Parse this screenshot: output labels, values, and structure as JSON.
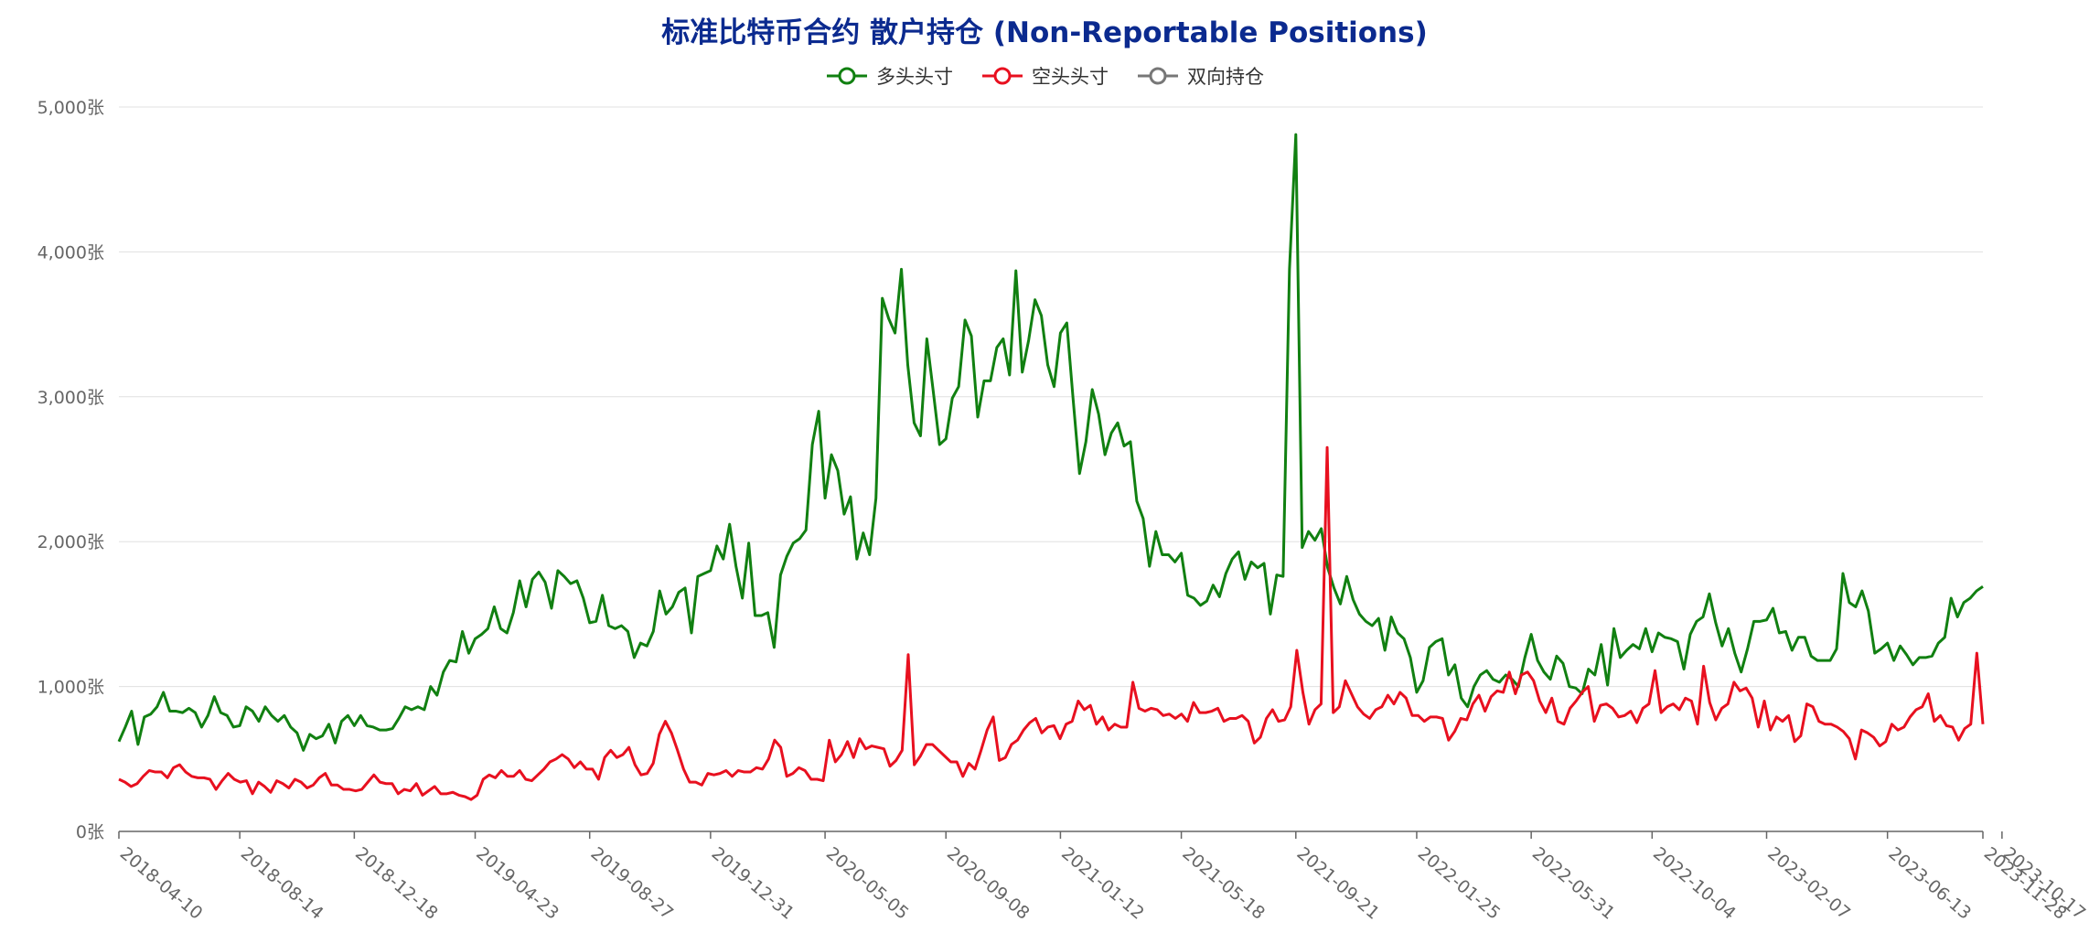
{
  "chart_data": {
    "type": "line",
    "title": "标准比特币合约 散户持仓 (Non-Reportable Positions)",
    "ylim": [
      0,
      5000
    ],
    "y_ticks": [
      "0张",
      "1,000张",
      "2,000张",
      "3,000张",
      "4,000张",
      "5,000张"
    ],
    "y_tick_values": [
      0,
      1000,
      2000,
      3000,
      4000,
      5000
    ],
    "x_tick_labels": [
      "2018-04-10",
      "2018-08-14",
      "2018-12-18",
      "2019-04-23",
      "2019-08-27",
      "2019-12-31",
      "2020-05-05",
      "2020-09-08",
      "2021-01-12",
      "2021-05-18",
      "2021-09-21",
      "2022-01-25",
      "2022-05-31",
      "2022-10-04",
      "2023-02-07",
      "2023-06-13",
      "2023-10-17",
      "2023-11-28"
    ],
    "grid": true,
    "legend_position": "top-center",
    "series": [
      {
        "name": "多头头寸",
        "color": "#118011",
        "values": [
          620,
          720,
          830,
          600,
          790,
          810,
          860,
          960,
          830,
          830,
          820,
          850,
          820,
          720,
          800,
          930,
          820,
          800,
          720,
          730,
          860,
          830,
          760,
          860,
          800,
          760,
          800,
          720,
          680,
          560,
          670,
          640,
          660,
          740,
          610,
          760,
          800,
          730,
          800,
          730,
          720,
          700,
          700,
          710,
          780,
          860,
          840,
          860,
          840,
          1000,
          940,
          1100,
          1180,
          1170,
          1380,
          1230,
          1330,
          1360,
          1400,
          1550,
          1400,
          1370,
          1510,
          1730,
          1550,
          1740,
          1790,
          1720,
          1540,
          1800,
          1760,
          1710,
          1730,
          1610,
          1440,
          1450,
          1630,
          1420,
          1400,
          1420,
          1380,
          1200,
          1300,
          1280,
          1380,
          1660,
          1500,
          1550,
          1650,
          1680,
          1370,
          1760,
          1780,
          1800,
          1970,
          1880,
          2120,
          1830,
          1610,
          1990,
          1490,
          1490,
          1510,
          1270,
          1770,
          1900,
          1990,
          2020,
          2080,
          2670,
          2900,
          2300,
          2600,
          2490,
          2190,
          2310,
          1880,
          2060,
          1910,
          2300,
          3680,
          3540,
          3440,
          3880,
          3220,
          2820,
          2730,
          3400,
          3040,
          2670,
          2710,
          2990,
          3070,
          3530,
          3420,
          2860,
          3110,
          3110,
          3340,
          3400,
          3150,
          3870,
          3170,
          3390,
          3670,
          3560,
          3220,
          3070,
          3440,
          3510,
          2980,
          2470,
          2690,
          3050,
          2880,
          2600,
          2750,
          2820,
          2660,
          2690,
          2280,
          2160,
          1830,
          2070,
          1910,
          1910,
          1860,
          1920,
          1630,
          1610,
          1560,
          1590,
          1700,
          1620,
          1780,
          1880,
          1930,
          1740,
          1860,
          1820,
          1850,
          1500,
          1770,
          1760,
          3880,
          4810,
          1960,
          2070,
          2010,
          2090,
          1820,
          1680,
          1570,
          1760,
          1600,
          1500,
          1450,
          1420,
          1470,
          1250,
          1480,
          1370,
          1330,
          1200,
          960,
          1040,
          1270,
          1310,
          1330,
          1080,
          1150,
          920,
          860,
          1000,
          1080,
          1110,
          1050,
          1030,
          1080,
          1050,
          1000,
          1200,
          1360,
          1180,
          1100,
          1050,
          1210,
          1160,
          1000,
          990,
          950,
          1120,
          1080,
          1290,
          1010,
          1400,
          1200,
          1250,
          1290,
          1260,
          1400,
          1240,
          1370,
          1340,
          1330,
          1310,
          1120,
          1360,
          1450,
          1480,
          1640,
          1440,
          1280,
          1400,
          1230,
          1100,
          1260,
          1450,
          1450,
          1460,
          1540,
          1370,
          1380,
          1250,
          1340,
          1340,
          1210,
          1180,
          1180,
          1180,
          1260,
          1780,
          1580,
          1550,
          1660,
          1520,
          1230,
          1260,
          1300,
          1180,
          1280,
          1220,
          1150,
          1200,
          1200,
          1210,
          1300,
          1340,
          1610,
          1480,
          1580,
          1610,
          1660,
          1690
        ]
      },
      {
        "name": "空头头寸",
        "color": "#e8101f",
        "values": [
          360,
          340,
          310,
          330,
          380,
          420,
          410,
          410,
          370,
          440,
          460,
          410,
          380,
          370,
          370,
          360,
          290,
          350,
          400,
          360,
          340,
          350,
          260,
          340,
          310,
          270,
          350,
          330,
          300,
          360,
          340,
          300,
          320,
          370,
          400,
          320,
          320,
          290,
          290,
          280,
          290,
          340,
          390,
          340,
          330,
          330,
          260,
          290,
          280,
          330,
          250,
          280,
          310,
          260,
          260,
          270,
          250,
          240,
          220,
          250,
          360,
          390,
          370,
          420,
          380,
          380,
          420,
          360,
          350,
          390,
          430,
          480,
          500,
          530,
          500,
          440,
          480,
          430,
          430,
          360,
          510,
          560,
          510,
          530,
          580,
          460,
          390,
          400,
          470,
          670,
          760,
          680,
          560,
          430,
          340,
          340,
          320,
          400,
          390,
          400,
          420,
          380,
          420,
          410,
          410,
          440,
          430,
          500,
          630,
          580,
          380,
          400,
          440,
          420,
          360,
          360,
          350,
          630,
          480,
          530,
          620,
          510,
          640,
          570,
          590,
          580,
          570,
          450,
          490,
          560,
          1220,
          460,
          520,
          600,
          600,
          560,
          520,
          480,
          480,
          380,
          470,
          430,
          560,
          700,
          790,
          490,
          510,
          600,
          630,
          700,
          750,
          780,
          680,
          720,
          730,
          640,
          740,
          760,
          900,
          840,
          870,
          740,
          790,
          700,
          740,
          720,
          720,
          1030,
          850,
          830,
          850,
          840,
          800,
          810,
          780,
          810,
          760,
          890,
          820,
          820,
          830,
          850,
          760,
          780,
          780,
          800,
          760,
          610,
          650,
          780,
          840,
          760,
          770,
          860,
          1250,
          960,
          740,
          840,
          880,
          2650,
          820,
          860,
          1040,
          950,
          860,
          810,
          780,
          840,
          860,
          940,
          880,
          960,
          920,
          800,
          800,
          760,
          790,
          790,
          780,
          630,
          690,
          780,
          770,
          880,
          940,
          830,
          930,
          970,
          960,
          1100,
          950,
          1080,
          1100,
          1040,
          900,
          820,
          920,
          760,
          740,
          850,
          900,
          960,
          1000,
          760,
          870,
          880,
          850,
          790,
          800,
          830,
          750,
          850,
          880,
          1110,
          820,
          860,
          880,
          840,
          920,
          900,
          740,
          1140,
          890,
          770,
          850,
          880,
          1030,
          970,
          990,
          920,
          720,
          900,
          700,
          790,
          760,
          800,
          620,
          660,
          880,
          860,
          760,
          740,
          740,
          720,
          690,
          640,
          500,
          700,
          680,
          650,
          590,
          620,
          740,
          700,
          720,
          790,
          840,
          860,
          950,
          760,
          800,
          730,
          720,
          630,
          710,
          740,
          1230,
          740
        ]
      },
      {
        "name": "双向持仓",
        "color": "#777777",
        "values": []
      }
    ]
  }
}
